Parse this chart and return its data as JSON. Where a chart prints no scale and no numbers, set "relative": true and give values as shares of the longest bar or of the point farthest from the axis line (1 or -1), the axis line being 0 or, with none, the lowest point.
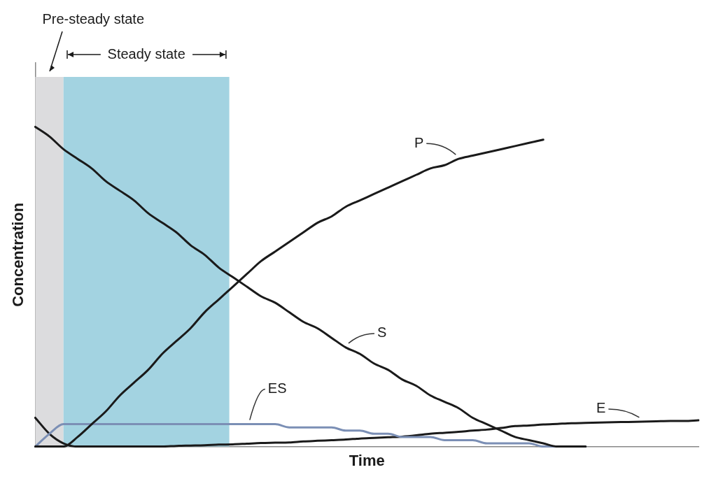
{
  "chart_data": {
    "type": "line",
    "relative": true,
    "xlabel": "Time",
    "ylabel": "Concentration",
    "categories": [
      null,
      null,
      null,
      null,
      null,
      null,
      null,
      null,
      null,
      null,
      null,
      null,
      null,
      null,
      null,
      null,
      null,
      null,
      null,
      null,
      null,
      null,
      null,
      null,
      null,
      null,
      null,
      null,
      null,
      null,
      null,
      null,
      null,
      null,
      null,
      null,
      null,
      null,
      null,
      null,
      null,
      null,
      null,
      null,
      null,
      null,
      null,
      null
    ],
    "series": [
      {
        "name": "S",
        "color": "#1a1a1a",
        "values": [
          1.0,
          0.97,
          0.93,
          0.9,
          0.87,
          0.83,
          0.8,
          0.77,
          0.73,
          0.7,
          0.67,
          0.63,
          0.6,
          0.56,
          0.53,
          0.5,
          0.47,
          0.45,
          0.42,
          0.39,
          0.37,
          0.34,
          0.31,
          0.29,
          0.26,
          0.24,
          0.21,
          0.19,
          0.16,
          0.14,
          0.12,
          0.09,
          0.07,
          0.05,
          0.03,
          0.02,
          0.01,
          0,
          0,
          0,
          null,
          null,
          null,
          null,
          null,
          null,
          null,
          null
        ]
      },
      {
        "name": "P",
        "color": "#1a1a1a",
        "values": [
          0,
          0,
          0,
          0.03,
          0.07,
          0.11,
          0.16,
          0.2,
          0.24,
          0.29,
          0.33,
          0.37,
          0.42,
          0.46,
          0.5,
          0.54,
          0.58,
          0.61,
          0.64,
          0.67,
          0.7,
          0.72,
          0.75,
          0.77,
          0.79,
          0.81,
          0.83,
          0.85,
          0.87,
          0.88,
          0.9,
          0.91,
          0.92,
          0.93,
          0.94,
          0.95,
          0.96,
          null,
          null,
          null,
          null,
          null,
          null,
          null,
          null,
          null,
          null,
          null
        ]
      },
      {
        "name": "ES",
        "color": "#7b8fb5",
        "values": [
          0,
          0.04,
          0.07,
          0.07,
          0.07,
          0.07,
          0.07,
          0.07,
          0.07,
          0.07,
          0.07,
          0.07,
          0.07,
          0.07,
          0.07,
          0.07,
          0.07,
          0.07,
          0.06,
          0.06,
          0.06,
          0.06,
          0.05,
          0.05,
          0.04,
          0.04,
          0.03,
          0.03,
          0.03,
          0.02,
          0.02,
          0.02,
          0.01,
          0.01,
          0.01,
          0.01,
          0,
          0,
          0,
          0,
          null,
          null,
          null,
          null,
          null,
          null,
          null,
          null
        ]
      },
      {
        "name": "E",
        "color": "#1a1a1a",
        "values": [
          0.09,
          0.04,
          0.01,
          0,
          0,
          0,
          0,
          0,
          0,
          0,
          0.002,
          0.003,
          0.004,
          0.006,
          0.007,
          0.009,
          0.011,
          0.012,
          0.013,
          0.016,
          0.018,
          0.02,
          0.022,
          0.025,
          0.027,
          0.029,
          0.031,
          0.035,
          0.04,
          0.043,
          0.046,
          0.05,
          0.053,
          0.058,
          0.064,
          0.066,
          0.069,
          0.071,
          0.073,
          0.074,
          0.075,
          0.076,
          0.077,
          0.078,
          0.079,
          0.08,
          0.08,
          0.082
        ]
      }
    ],
    "annotations": [
      "Pre-steady state",
      "Steady state"
    ]
  }
}
